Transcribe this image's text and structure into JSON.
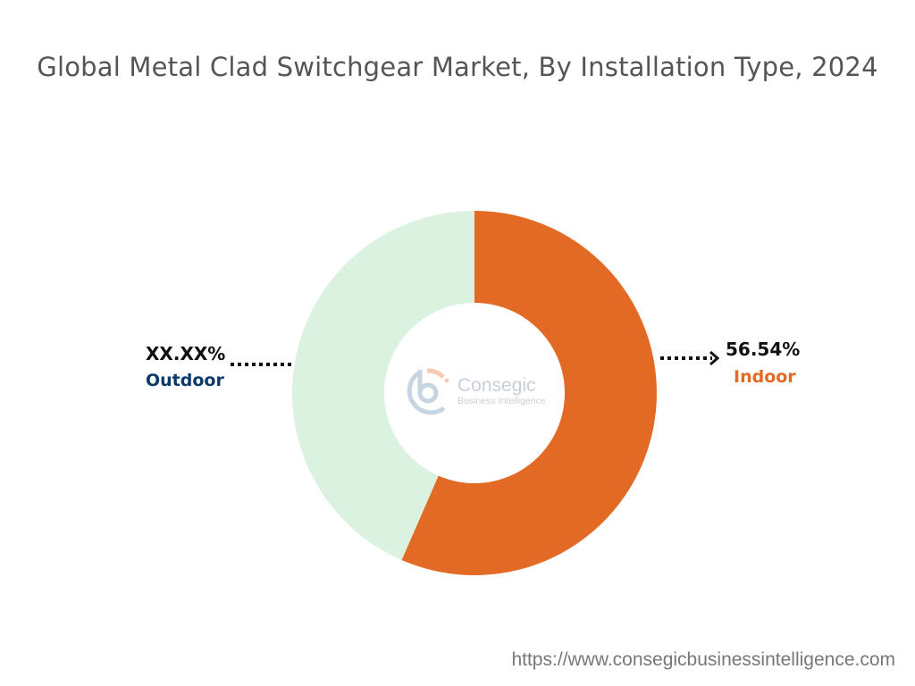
{
  "chart_data": {
    "type": "pie",
    "variant": "donut",
    "title": "Global Metal Clad Switchgear Market, By Installation Type, 2024",
    "slices": [
      {
        "name": "Indoor",
        "value": 56.54,
        "label": "56.54%",
        "color": "#e36a25",
        "label_color": "#e36a25"
      },
      {
        "name": "Outdoor",
        "value": 43.46,
        "label": "XX.XX%",
        "color": "#daf2df",
        "label_color": "#0b3a6b"
      }
    ],
    "start_angle": "top",
    "direction": "clockwise"
  },
  "watermark": {
    "line1": "Consegic",
    "line2": "Business Intelligence"
  },
  "footer": {
    "url": "https://www.consegicbusinessintelligence.com"
  }
}
